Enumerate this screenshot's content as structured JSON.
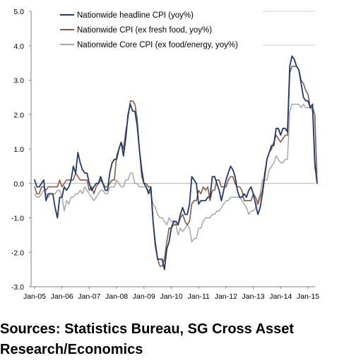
{
  "source_note": "Sources: Statistics Bureau, SG Cross Asset Research/Economics",
  "chart_data": {
    "type": "line",
    "title": "",
    "xlabel": "",
    "ylabel": "",
    "ylim": [
      -3.0,
      5.0
    ],
    "yticks": [
      5.0,
      4.0,
      3.0,
      2.0,
      1.0,
      0.0,
      -1.0,
      -2.0,
      -3.0
    ],
    "ytick_labels": [
      "5.0",
      "4.0",
      "3.0",
      "2.0",
      "1.0",
      "0.0",
      "-1.0",
      "-2.0",
      "-3.0"
    ],
    "x_tick_labels": [
      "Jan-05",
      "Jan-06",
      "Jan-07",
      "Jan-08",
      "Jan-09",
      "Jan-10",
      "Jan-11",
      "Jan-12",
      "Jan-13",
      "Jan-14",
      "Jan-15"
    ],
    "x_range": [
      "Jan-05",
      "May-15"
    ],
    "grid": false,
    "legend_position": "top-left",
    "series": [
      {
        "name": "Nationwide headline CPI (yoy%)",
        "color": "#1f3a6e",
        "start": "Jan-05",
        "values": [
          0.1,
          -0.1,
          -0.1,
          0.0,
          0.1,
          -0.5,
          -0.3,
          -0.3,
          -0.3,
          -0.7,
          -1.0,
          -0.4,
          -0.4,
          -0.1,
          -0.2,
          -0.1,
          0.1,
          0.5,
          0.3,
          0.9,
          0.6,
          0.4,
          0.3,
          0.3,
          0.0,
          -0.2,
          -0.1,
          0.0,
          0.0,
          0.2,
          0.0,
          -0.2,
          -0.2,
          0.3,
          0.6,
          0.7,
          0.7,
          1.0,
          1.2,
          0.8,
          1.3,
          2.0,
          2.3,
          2.1,
          2.1,
          1.7,
          1.0,
          0.4,
          0.0,
          -0.1,
          -0.3,
          -0.1,
          -1.1,
          -1.8,
          -2.2,
          -2.2,
          -2.2,
          -2.5,
          -1.9,
          -1.7,
          -1.3,
          -1.1,
          -1.1,
          -1.2,
          -0.9,
          -0.7,
          -0.9,
          -0.9,
          -0.6,
          0.2,
          0.1,
          0.0,
          -0.6,
          -0.5,
          -0.5,
          -0.5,
          -0.4,
          -0.4,
          0.2,
          0.2,
          0.0,
          -0.2,
          -0.5,
          -0.2,
          0.1,
          0.3,
          0.5,
          0.4,
          0.2,
          -0.2,
          -0.4,
          -0.4,
          -0.3,
          -0.4,
          -0.2,
          -0.1,
          -0.3,
          -0.6,
          -0.9,
          -0.7,
          -0.3,
          0.2,
          0.7,
          0.9,
          1.1,
          1.1,
          1.6,
          1.6,
          1.4,
          1.6,
          1.6,
          1.5,
          3.4,
          3.7,
          3.6,
          3.4,
          3.3,
          2.9,
          2.5,
          2.4,
          2.4,
          2.2,
          2.3,
          0.6,
          0.0
        ]
      },
      {
        "name": "Nationwide CPI (ex fresh food, yoy%)",
        "color": "#8b5a45",
        "start": "Jan-05",
        "values": [
          -0.1,
          -0.3,
          -0.3,
          -0.1,
          -0.1,
          -0.2,
          -0.1,
          -0.1,
          -0.1,
          -0.1,
          -0.1,
          0.1,
          -0.1,
          0.0,
          0.1,
          0.1,
          0.1,
          0.1,
          0.3,
          0.2,
          0.1,
          0.1,
          0.1,
          0.1,
          -0.2,
          -0.1,
          -0.3,
          -0.1,
          0.0,
          0.1,
          0.0,
          -0.1,
          -0.1,
          0.0,
          0.1,
          0.1,
          0.8,
          1.0,
          1.2,
          1.0,
          1.5,
          1.9,
          2.4,
          2.4,
          2.3,
          1.9,
          1.0,
          0.2,
          0.0,
          0.0,
          -0.1,
          -0.1,
          -1.1,
          -1.7,
          -2.2,
          -2.4,
          -2.4,
          -2.2,
          -1.7,
          -1.3,
          -1.3,
          -1.2,
          -1.2,
          -1.2,
          -1.0,
          -0.9,
          -1.1,
          -1.2,
          -1.1,
          -0.6,
          -0.5,
          -0.5,
          -0.2,
          -0.3,
          -0.1,
          -0.2,
          -0.1,
          -0.5,
          -0.2,
          -0.2,
          0.1,
          0.1,
          -0.1,
          -0.1,
          -0.1,
          0.1,
          0.2,
          0.2,
          0.0,
          -0.1,
          -0.1,
          -0.2,
          -0.5,
          -0.5,
          -0.5,
          -0.5,
          -0.3,
          -0.4,
          -0.6,
          -0.4,
          -0.2,
          0.3,
          0.7,
          0.9,
          1.0,
          1.2,
          1.4,
          1.3,
          1.2,
          1.3,
          1.4,
          1.4,
          3.2,
          3.4,
          3.4,
          3.4,
          3.3,
          3.0,
          2.9,
          2.7,
          2.6,
          2.2,
          2.2,
          2.0,
          0.0
        ]
      },
      {
        "name": "Nationwide Core CPI (ex food/energy, yoy%)",
        "color": "#a6a6a6",
        "start": "Jan-05",
        "values": [
          -0.3,
          -0.4,
          -0.4,
          -0.3,
          -0.2,
          -0.3,
          -0.4,
          -0.3,
          -0.3,
          -0.3,
          -0.2,
          -0.2,
          -0.4,
          -0.8,
          -0.5,
          -0.6,
          -0.4,
          -0.4,
          -0.3,
          -0.3,
          -0.2,
          -0.3,
          -0.1,
          -0.2,
          -0.3,
          -0.4,
          -0.5,
          -0.4,
          -0.3,
          -0.2,
          -0.2,
          -0.3,
          -0.3,
          -0.1,
          -0.1,
          -0.1,
          0.1,
          0.0,
          -0.1,
          -0.1,
          0.1,
          0.1,
          0.3,
          0.3,
          0.0,
          0.0,
          -0.1,
          -0.1,
          -0.1,
          -0.1,
          -0.2,
          -0.3,
          -0.6,
          -0.7,
          -0.9,
          -1.0,
          -1.0,
          -1.1,
          -1.2,
          -1.0,
          -1.1,
          -1.1,
          -1.2,
          -1.5,
          -1.3,
          -1.4,
          -1.3,
          -1.2,
          -1.3,
          -1.7,
          -1.6,
          -1.6,
          -1.3,
          -1.3,
          -1.1,
          -1.0,
          -1.0,
          -1.0,
          -0.9,
          -0.9,
          -0.8,
          -0.8,
          -0.7,
          -0.6,
          -0.5,
          -0.5,
          -0.4,
          -0.4,
          -0.4,
          -0.4,
          -0.4,
          -0.5,
          -0.6,
          -0.7,
          -0.9,
          -0.8,
          -0.8,
          -0.7,
          -0.5,
          -0.3,
          0.1,
          0.1,
          0.1,
          0.4,
          0.5,
          0.6,
          0.8,
          0.7,
          0.6,
          0.6,
          0.7,
          0.7,
          2.1,
          2.3,
          2.3,
          2.3,
          2.3,
          2.2,
          2.3,
          2.2,
          2.2,
          2.2,
          2.1,
          0.4,
          0.4
        ]
      }
    ]
  }
}
